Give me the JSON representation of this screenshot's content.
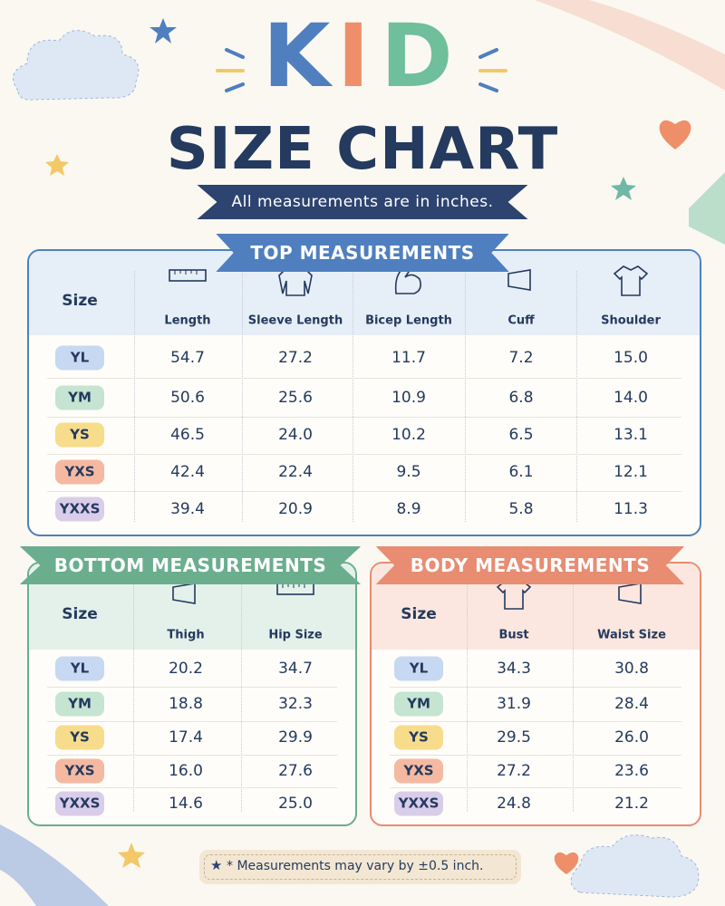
{
  "header": {
    "title_letters": [
      "K",
      "I",
      "D"
    ],
    "title": "SIZE CHART",
    "note": "All measurements are in inches."
  },
  "top": {
    "title": "TOP MEASUREMENTS",
    "columns": [
      "Size",
      "Length",
      "Sleeve Length",
      "Bicep Length",
      "Cuff",
      "Shoulder"
    ],
    "rows": [
      [
        "YL",
        "54.7",
        "27.2",
        "11.7",
        "7.2",
        "15.0"
      ],
      [
        "YM",
        "50.6",
        "25.6",
        "10.9",
        "6.8",
        "14.0"
      ],
      [
        "YS",
        "46.5",
        "24.0",
        "10.2",
        "6.5",
        "13.1"
      ],
      [
        "YXS",
        "42.4",
        "22.4",
        "9.5",
        "6.1",
        "12.1"
      ],
      [
        "YXXS",
        "39.4",
        "20.9",
        "8.9",
        "5.8",
        "11.3"
      ]
    ]
  },
  "bottom": {
    "title": "BOTTOM MEASUREMENTS",
    "columns": [
      "Size",
      "Thigh",
      "Hip Size"
    ],
    "rows": [
      [
        "YL",
        "20.2",
        "34.7"
      ],
      [
        "YM",
        "18.8",
        "32.3"
      ],
      [
        "YS",
        "17.4",
        "29.9"
      ],
      [
        "YXS",
        "16.0",
        "27.6"
      ],
      [
        "YXXS",
        "14.6",
        "25.0"
      ]
    ]
  },
  "body": {
    "title": "BODY MEASUREMENTS",
    "columns": [
      "Size",
      "Bust",
      "Waist Size"
    ],
    "rows": [
      [
        "YL",
        "34.3",
        "30.8"
      ],
      [
        "YM",
        "31.9",
        "28.4"
      ],
      [
        "YS",
        "29.5",
        "26.0"
      ],
      [
        "YXS",
        "27.2",
        "23.6"
      ],
      [
        "YXXS",
        "24.8",
        "21.2"
      ]
    ]
  },
  "footer": {
    "note": "* Measurements may vary by ±0.5 inch."
  }
}
